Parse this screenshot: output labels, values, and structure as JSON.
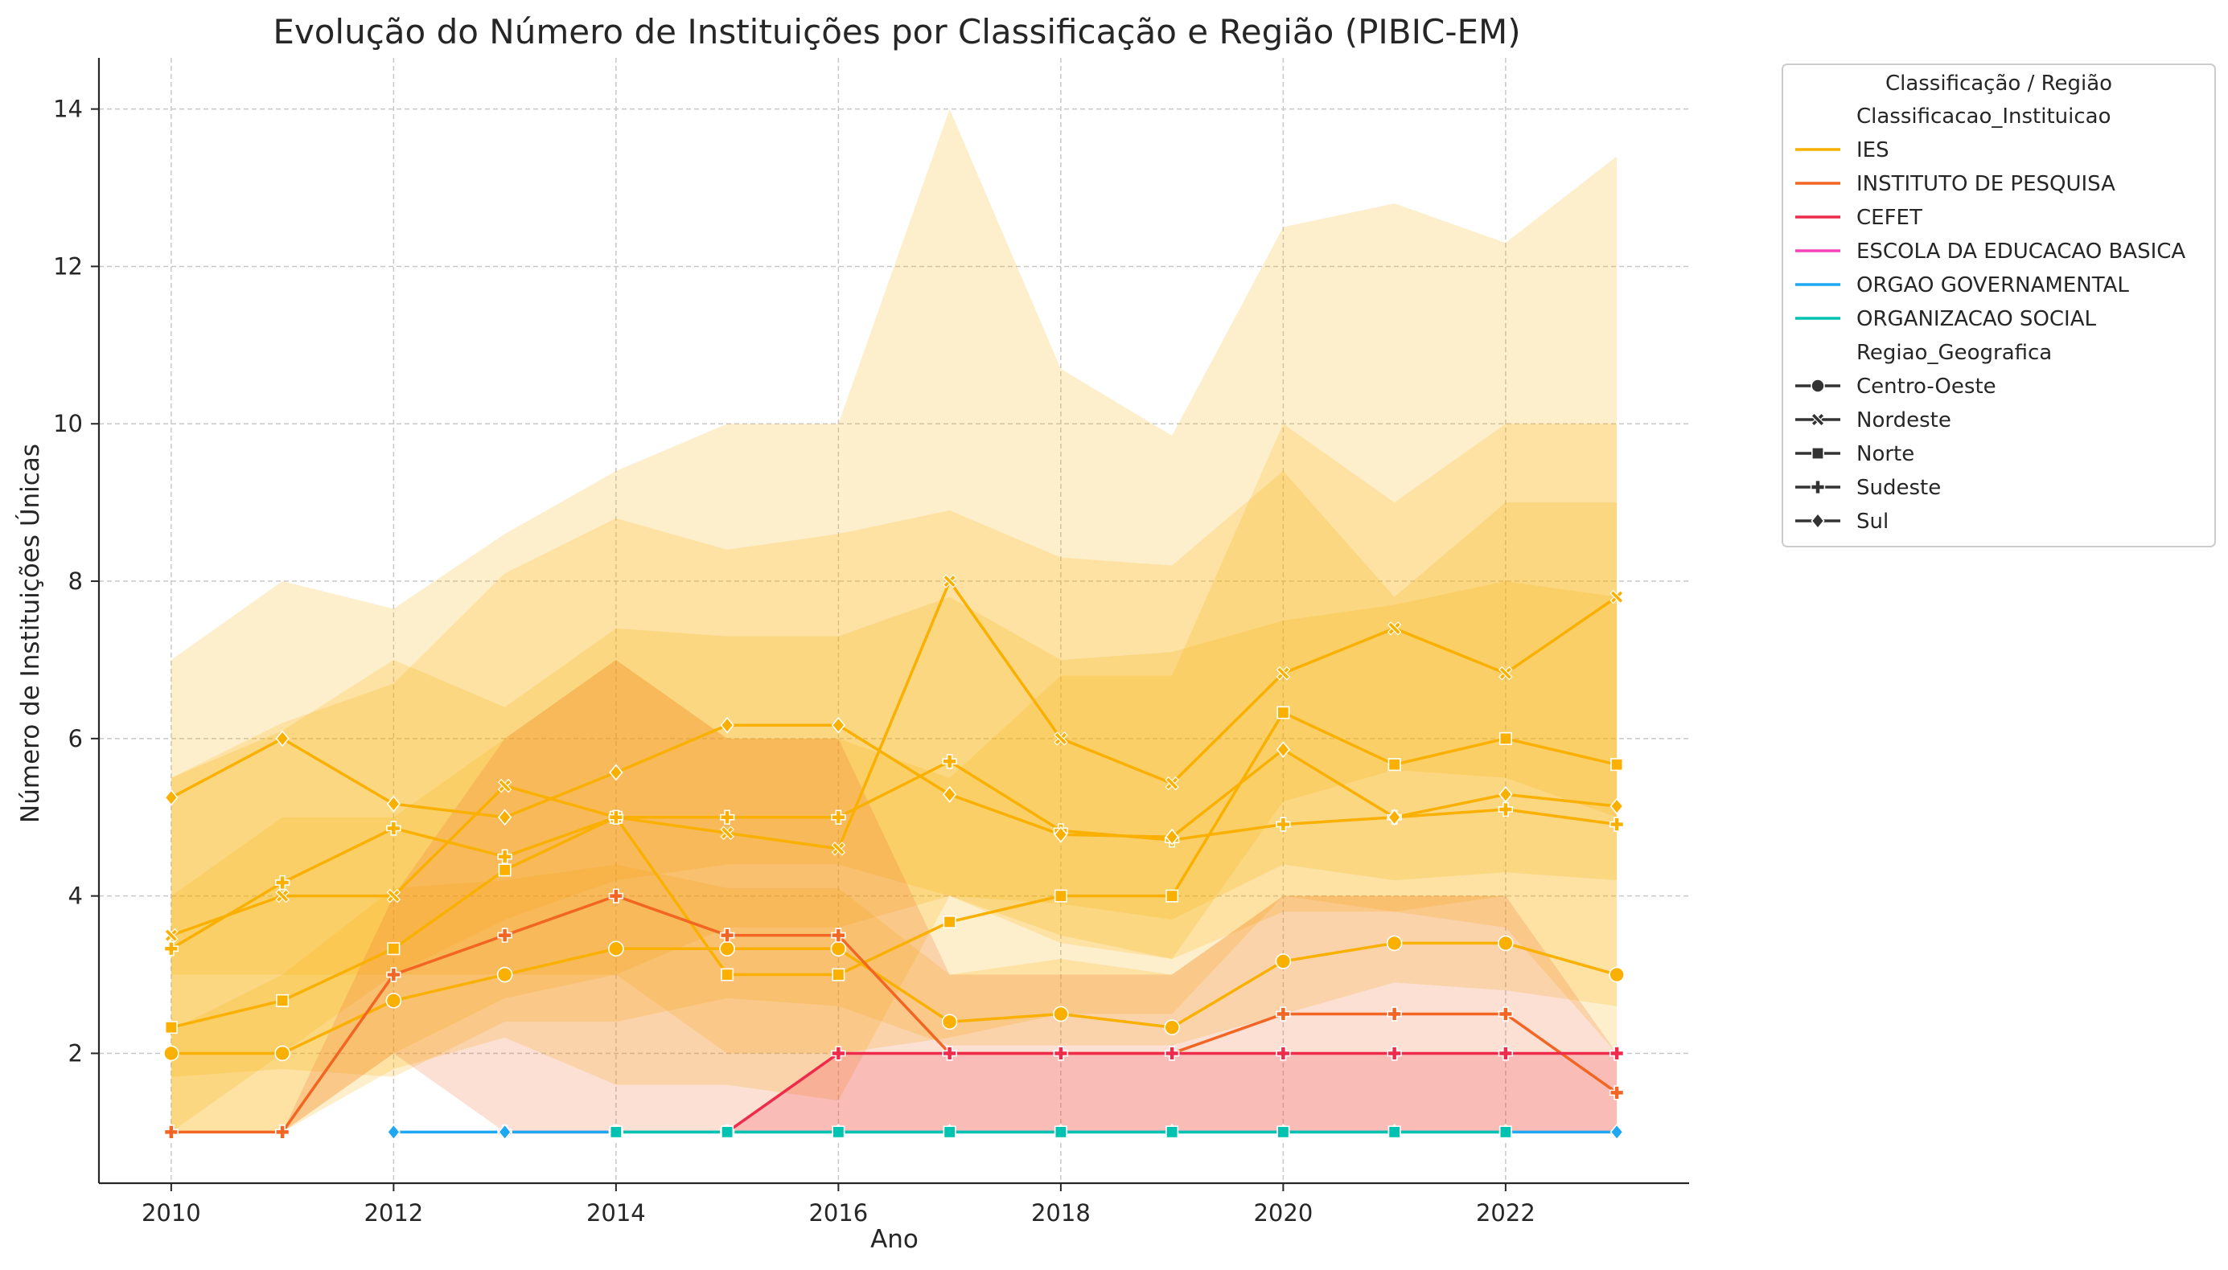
{
  "chart_data": {
    "type": "line",
    "title": "Evolução do Número de Instituições por Classificação e Região (PIBIC-EM)",
    "xlabel": "Ano",
    "ylabel": "Número de Instituições Únicas",
    "xlim": [
      2009.35,
      2023.65
    ],
    "ylim": [
      0.35,
      14.65
    ],
    "x_ticks": [
      "2010",
      "2012",
      "2014",
      "2016",
      "2018",
      "2020",
      "2022"
    ],
    "y_ticks": [
      "2",
      "4",
      "6",
      "8",
      "10",
      "12",
      "14"
    ],
    "grid": true,
    "legend": {
      "placement": "outside-right",
      "title": "Classificação / Região",
      "hue_title": "Classificacao_Instituicao",
      "style_title": "Regiao_Geografica",
      "hue_entries": [
        {
          "label": "IES",
          "color": "#F9B000"
        },
        {
          "label": "INSTITUTO DE PESQUISA",
          "color": "#F26522"
        },
        {
          "label": "CEFET",
          "color": "#EE2B4A"
        },
        {
          "label": "ESCOLA DA EDUCACAO BASICA",
          "color": "#F542B7"
        },
        {
          "label": "ORGAO GOVERNAMENTAL",
          "color": "#1EA7F2"
        },
        {
          "label": "ORGANIZACAO SOCIAL",
          "color": "#00C2B0"
        }
      ],
      "style_entries": [
        {
          "label": "Centro-Oeste",
          "marker": "circle"
        },
        {
          "label": "Nordeste",
          "marker": "x"
        },
        {
          "label": "Norte",
          "marker": "square"
        },
        {
          "label": "Sudeste",
          "marker": "plus"
        },
        {
          "label": "Sul",
          "marker": "diamond"
        }
      ]
    },
    "series": [
      {
        "classification": "IES",
        "region": "Centro-Oeste",
        "color": "#F9B000",
        "marker": "circle",
        "x": [
          2010,
          2011,
          2012,
          2013,
          2014,
          2015,
          2016,
          2017,
          2018,
          2019,
          2020,
          2021,
          2022,
          2023
        ],
        "y": [
          2,
          2,
          2.67,
          3,
          3.33,
          3.33,
          3.33,
          2.4,
          2.5,
          2.33,
          3.17,
          3.4,
          3.4,
          3
        ],
        "band_lower": [
          1.7,
          1.8,
          1.7,
          2.4,
          2.4,
          2.7,
          2.6,
          2.1,
          2.1,
          2.1,
          2.5,
          2.9,
          2.8,
          2.6
        ],
        "band_upper": [
          2.3,
          3,
          4.1,
          4.2,
          4.4,
          4.1,
          4.1,
          3,
          3.2,
          3,
          4,
          4,
          4,
          3.4
        ]
      },
      {
        "classification": "IES",
        "region": "Nordeste",
        "color": "#F9B000",
        "marker": "x",
        "x": [
          2010,
          2011,
          2012,
          2013,
          2014,
          2015,
          2016,
          2017,
          2018,
          2019,
          2020,
          2021,
          2022,
          2023
        ],
        "y": [
          3.5,
          4,
          4,
          5.4,
          5,
          4.8,
          4.6,
          8,
          6,
          5.43,
          6.83,
          7.4,
          6.83,
          7.8
        ],
        "band_lower": [
          1,
          1,
          1.8,
          2.2,
          1.6,
          1.6,
          1.4,
          4,
          3.5,
          3.2,
          5.2,
          5.6,
          5.5,
          5
        ],
        "band_upper": [
          7,
          8,
          7.65,
          8.6,
          9.4,
          10,
          10,
          14,
          10.7,
          9.85,
          12.5,
          12.8,
          12.3,
          13.4
        ]
      },
      {
        "classification": "IES",
        "region": "Norte",
        "color": "#F9B000",
        "marker": "square",
        "x": [
          2010,
          2011,
          2012,
          2013,
          2014,
          2015,
          2016,
          2017,
          2018,
          2019,
          2020,
          2021,
          2022,
          2023
        ],
        "y": [
          2.33,
          2.67,
          3.33,
          4.33,
          5,
          3,
          3,
          3.67,
          4,
          4,
          6.33,
          5.67,
          6,
          5.67
        ],
        "band_lower": [
          1,
          1,
          2,
          2.7,
          3,
          2,
          2,
          2.2,
          2.5,
          2.5,
          4,
          3.8,
          3.6,
          2
        ],
        "band_upper": [
          4,
          5,
          5,
          6,
          7,
          6,
          6,
          5.5,
          6.8,
          6.8,
          10,
          9,
          10,
          10
        ]
      },
      {
        "classification": "IES",
        "region": "Sudeste",
        "color": "#F9B000",
        "marker": "plus",
        "x": [
          2010,
          2011,
          2012,
          2013,
          2014,
          2015,
          2016,
          2017,
          2018,
          2019,
          2020,
          2021,
          2022,
          2023
        ],
        "y": [
          3.33,
          4.17,
          4.86,
          4.5,
          5,
          5,
          5,
          5.71,
          4.83,
          4.71,
          4.91,
          5,
          5.1,
          4.91
        ],
        "band_lower": [
          1,
          2,
          3,
          3,
          3,
          3.6,
          3.6,
          4,
          3.4,
          3.2,
          3.8,
          3.8,
          4,
          3.4
        ],
        "band_upper": [
          5.5,
          6.2,
          6.7,
          8.1,
          8.8,
          8.4,
          8.6,
          8.9,
          8.3,
          8.2,
          9.4,
          7.8,
          9,
          9
        ]
      },
      {
        "classification": "IES",
        "region": "Sul",
        "color": "#F9B000",
        "marker": "diamond",
        "x": [
          2010,
          2011,
          2012,
          2013,
          2014,
          2015,
          2016,
          2017,
          2018,
          2019,
          2020,
          2021,
          2022,
          2023
        ],
        "y": [
          5.25,
          6,
          5.17,
          5,
          5.57,
          6.17,
          6.17,
          5.29,
          4.78,
          4.75,
          5.86,
          5,
          5.29,
          5.14
        ],
        "band_lower": [
          3,
          3,
          3,
          3.7,
          4.2,
          4.4,
          4.4,
          4,
          3.9,
          3.7,
          4.4,
          4.2,
          4.3,
          4.2
        ],
        "band_upper": [
          5.5,
          6.1,
          7,
          6.4,
          7.4,
          7.3,
          7.3,
          7.8,
          7,
          7.1,
          7.5,
          7.7,
          8,
          7.8
        ]
      },
      {
        "classification": "INSTITUTO DE PESQUISA",
        "region": "Sudeste",
        "color": "#F26522",
        "marker": "plus",
        "x": [
          2010,
          2011,
          2012,
          2013,
          2014,
          2015,
          2016,
          2017,
          2018,
          2019,
          2020,
          2021,
          2022,
          2023
        ],
        "y": [
          1,
          1,
          3,
          3.5,
          4,
          3.5,
          3.5,
          2,
          2,
          2,
          2.5,
          2.5,
          2.5,
          1.5
        ],
        "band_lower": [
          1,
          1,
          2,
          1,
          1,
          1,
          1,
          1,
          1,
          1,
          1,
          1,
          1,
          1
        ],
        "band_upper": [
          1,
          1,
          4,
          6,
          7,
          6,
          6,
          3,
          3,
          3,
          4,
          4,
          4,
          2
        ]
      },
      {
        "classification": "CEFET",
        "region": "Sudeste",
        "color": "#EE2B4A",
        "marker": "plus",
        "x": [
          2015,
          2016,
          2017,
          2018,
          2019,
          2020,
          2021,
          2022,
          2023
        ],
        "y": [
          1,
          2,
          2,
          2,
          2,
          2,
          2,
          2,
          2
        ],
        "band_lower": [
          1,
          1,
          1,
          1,
          1,
          1,
          1,
          1,
          1
        ],
        "band_upper": [
          1,
          2,
          2,
          2,
          2,
          2,
          2,
          2,
          2
        ]
      },
      {
        "classification": "ESCOLA DA EDUCACAO BASICA",
        "region": "Sudeste",
        "color": "#F542B7",
        "marker": "plus",
        "x": [
          2013,
          2014
        ],
        "y": [
          1,
          1
        ]
      },
      {
        "classification": "ORGAO GOVERNAMENTAL",
        "region": "Sul",
        "color": "#1EA7F2",
        "marker": "diamond",
        "x": [
          2012,
          2013,
          2014,
          2015,
          2016,
          2017,
          2018,
          2019,
          2020,
          2021,
          2022,
          2023
        ],
        "y": [
          1,
          1,
          1,
          1,
          1,
          1,
          1,
          1,
          1,
          1,
          1,
          1
        ]
      },
      {
        "classification": "ORGANIZACAO SOCIAL",
        "region": "Norte",
        "color": "#00C2B0",
        "marker": "square",
        "x": [
          2014,
          2015,
          2016,
          2017,
          2018,
          2019,
          2020,
          2021,
          2022
        ],
        "y": [
          1,
          1,
          1,
          1,
          1,
          1,
          1,
          1,
          1
        ]
      }
    ]
  }
}
